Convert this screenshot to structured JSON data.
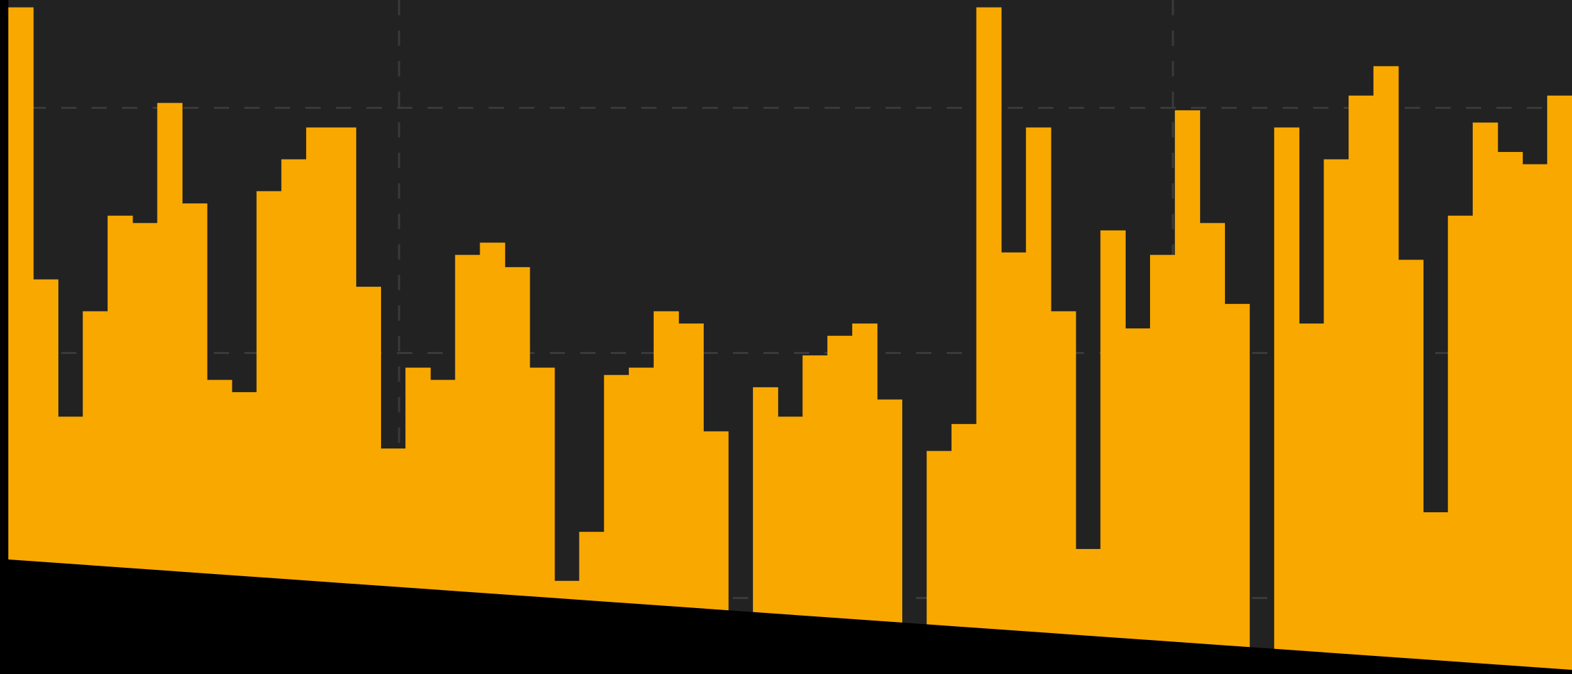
{
  "chart_data": {
    "type": "step-area",
    "color": "#f9a800",
    "background": "#222222",
    "values": [
      2.41,
      1.3,
      0.74,
      1.17,
      1.56,
      1.53,
      2.02,
      1.61,
      0.89,
      0.84,
      1.66,
      1.79,
      1.92,
      1.92,
      1.27,
      0.61,
      0.94,
      0.89,
      1.4,
      1.45,
      1.35,
      0.94,
      0.07,
      0.27,
      0.91,
      0.94,
      1.17,
      1.12,
      0.68,
      null,
      0.86,
      0.74,
      0.99,
      1.07,
      1.12,
      0.81,
      null,
      0.6,
      0.71,
      2.41,
      1.41,
      1.92,
      1.17,
      0.2,
      1.5,
      1.1,
      1.4,
      1.99,
      1.53,
      1.2,
      null,
      1.92,
      1.12,
      1.79,
      2.05,
      2.17,
      1.38,
      0.35,
      1.56,
      1.94,
      1.82,
      1.77,
      2.05
    ],
    "ylim": [
      -0.31,
      2.44
    ],
    "yticks": [
      0,
      1,
      2
    ],
    "grid": true
  }
}
